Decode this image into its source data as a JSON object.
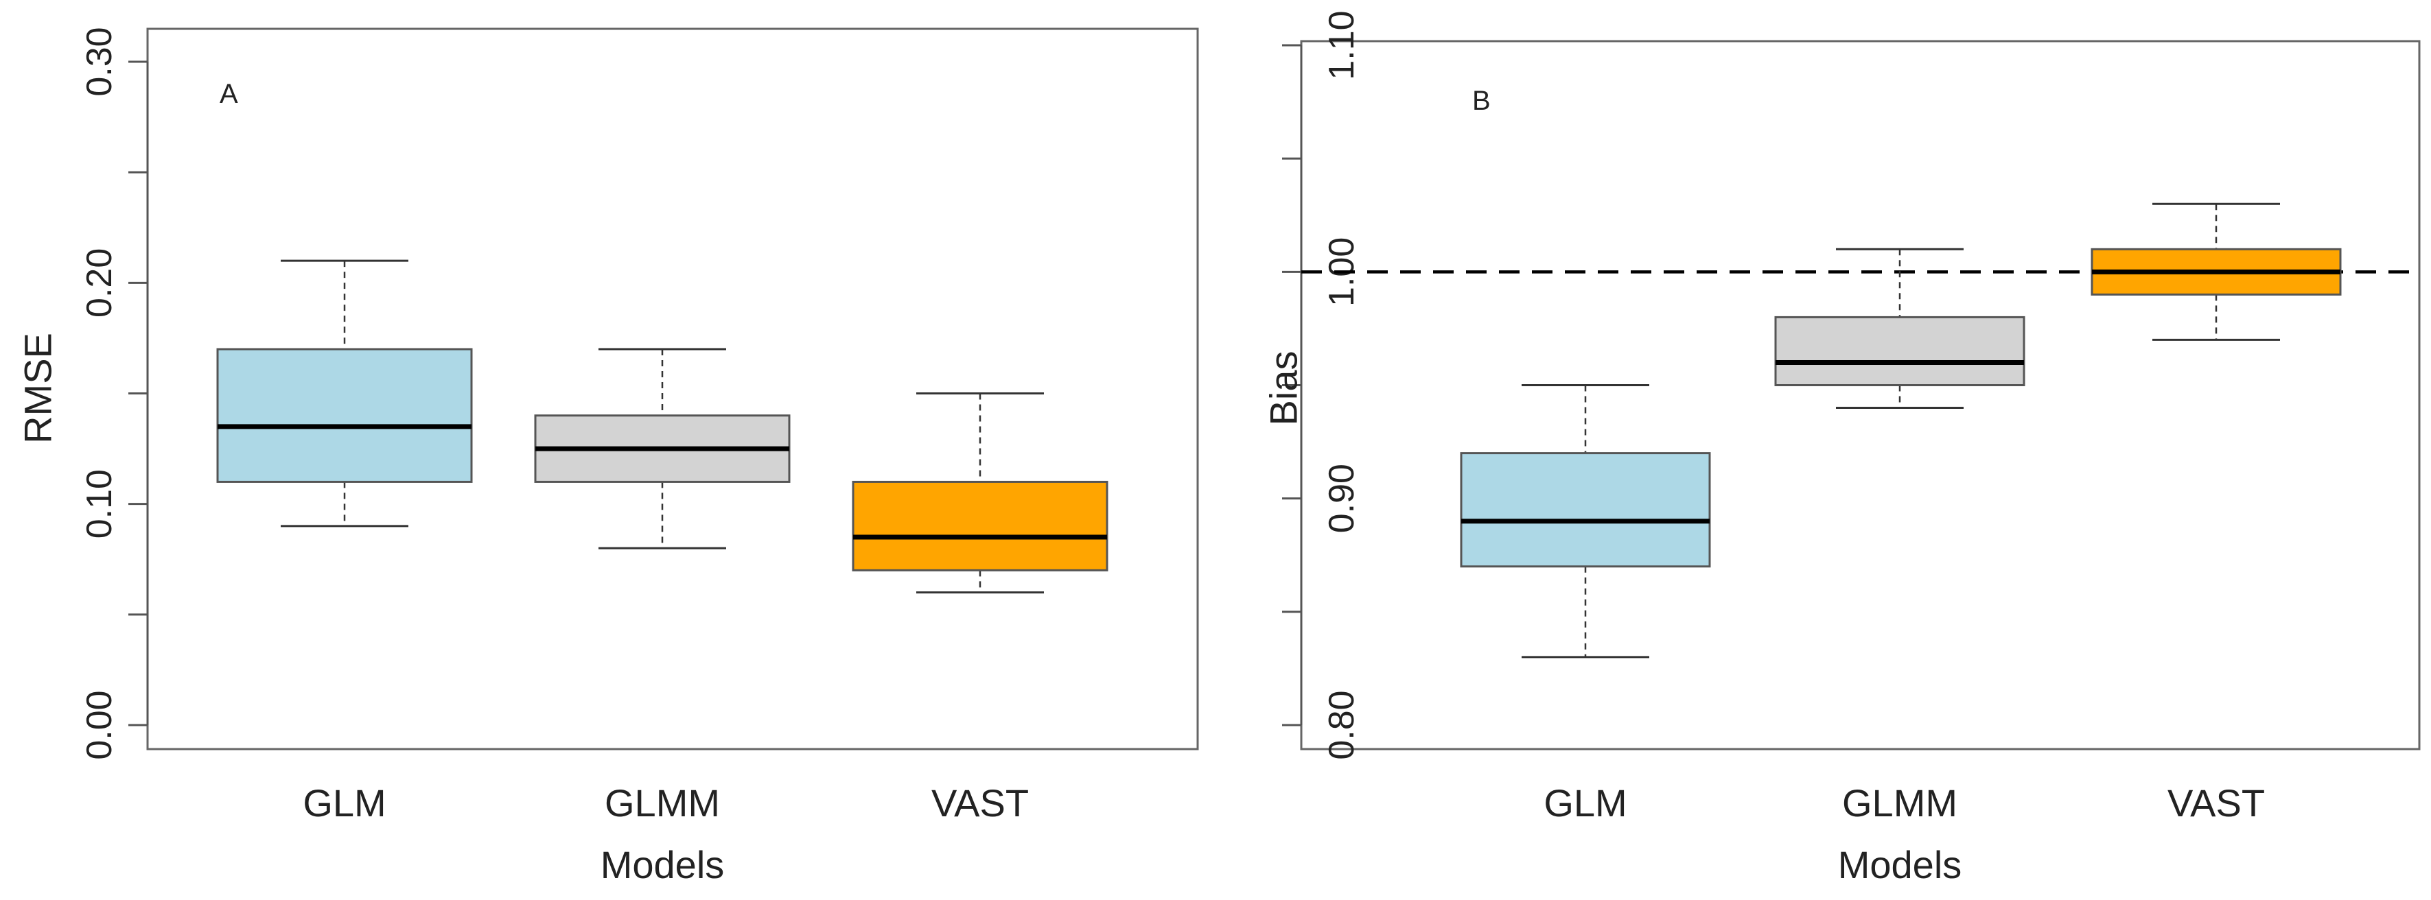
{
  "chart_data": [
    {
      "type": "boxplot",
      "panel_label": "A",
      "xlabel": "Models",
      "ylabel": "RMSE",
      "ylim": [
        0.0,
        0.3
      ],
      "yticks": [
        0.0,
        0.05,
        0.1,
        0.15,
        0.2,
        0.25,
        0.3
      ],
      "ytick_labels": [
        "0.00",
        "",
        "0.10",
        "",
        "0.20",
        "",
        "0.30"
      ],
      "categories": [
        "GLM",
        "GLMM",
        "VAST"
      ],
      "boxes": [
        {
          "name": "GLM",
          "min": 0.09,
          "q1": 0.11,
          "median": 0.135,
          "q3": 0.17,
          "max": 0.21,
          "color": "#add8e6"
        },
        {
          "name": "GLMM",
          "min": 0.08,
          "q1": 0.11,
          "median": 0.125,
          "q3": 0.14,
          "max": 0.17,
          "color": "#d3d3d3"
        },
        {
          "name": "VAST",
          "min": 0.06,
          "q1": 0.07,
          "median": 0.085,
          "q3": 0.11,
          "max": 0.15,
          "color": "#ffa500"
        }
      ]
    },
    {
      "type": "boxplot",
      "panel_label": "B",
      "xlabel": "Models",
      "ylabel": "Bias",
      "ylim": [
        0.8,
        1.1
      ],
      "yticks": [
        0.8,
        0.85,
        0.9,
        0.95,
        1.0,
        1.05,
        1.1
      ],
      "ytick_labels": [
        "0.80",
        "",
        "0.90",
        "",
        "1.00",
        "",
        "1.10"
      ],
      "reference_line": 1.0,
      "categories": [
        "GLM",
        "GLMM",
        "VAST"
      ],
      "boxes": [
        {
          "name": "GLM",
          "min": 0.83,
          "q1": 0.87,
          "median": 0.89,
          "q3": 0.92,
          "max": 0.95,
          "color": "#add8e6"
        },
        {
          "name": "GLMM",
          "min": 0.94,
          "q1": 0.95,
          "median": 0.96,
          "q3": 0.98,
          "max": 1.01,
          "color": "#d3d3d3"
        },
        {
          "name": "VAST",
          "min": 0.97,
          "q1": 0.99,
          "median": 1.0,
          "q3": 1.01,
          "max": 1.03,
          "color": "#ffa500"
        }
      ]
    }
  ]
}
